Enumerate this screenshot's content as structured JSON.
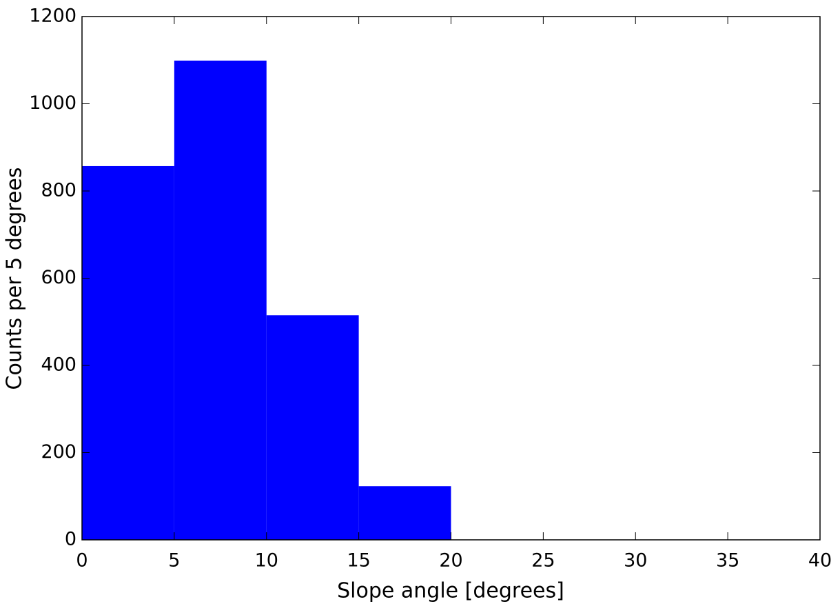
{
  "chart_data": {
    "type": "histogram",
    "xlabel": "Slope angle [degrees]",
    "ylabel": "Counts per 5 degrees",
    "bins": [
      0,
      5,
      10,
      15,
      20,
      25,
      30,
      35,
      40
    ],
    "values": [
      857,
      1099,
      515,
      123,
      0,
      0,
      0,
      0
    ],
    "color": "#0000ff",
    "xlim": [
      0,
      40
    ],
    "ylim": [
      0,
      1200
    ],
    "xticks": [
      0,
      5,
      10,
      15,
      20,
      25,
      30,
      35,
      40
    ],
    "yticks": [
      0,
      200,
      400,
      600,
      800,
      1000,
      1200
    ]
  }
}
